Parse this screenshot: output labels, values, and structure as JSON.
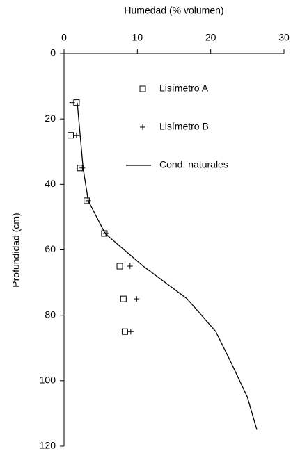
{
  "chart_data": {
    "type": "scatter",
    "x_label": "Humedad (% volumen)",
    "y_label": "Profundidad (cm)",
    "xlim": [
      0,
      30
    ],
    "xticks": [
      0,
      10,
      20,
      30
    ],
    "x_axis_position": "top",
    "ylim": [
      0,
      120
    ],
    "yticks": [
      0,
      20,
      40,
      60,
      80,
      100,
      120
    ],
    "y_inverted": true,
    "legend": "top-right",
    "series": [
      {
        "name": "Lisímetro A",
        "marker": "square",
        "color": "#000000",
        "x": [
          1.7,
          0.9,
          2.2,
          3.1,
          5.5,
          7.6,
          8.1,
          8.3
        ],
        "y": [
          15,
          25,
          35,
          45,
          55,
          65,
          75,
          85
        ]
      },
      {
        "name": "Lisímetro B",
        "marker": "plus",
        "color": "#000000",
        "x": [
          1.1,
          1.7,
          2.5,
          3.3,
          5.7,
          9.0,
          9.9,
          9.1
        ],
        "y": [
          15,
          25,
          35,
          45,
          55,
          65,
          75,
          85
        ]
      },
      {
        "name": "Cond. naturales",
        "marker": "line",
        "color": "#000000",
        "x": [
          1.8,
          2.2,
          2.6,
          3.3,
          5.6,
          10.8,
          16.8,
          20.7,
          22.9,
          25.0,
          26.3
        ],
        "y": [
          15,
          25,
          35,
          45,
          55,
          65,
          75,
          85,
          95,
          105,
          115
        ]
      }
    ]
  }
}
